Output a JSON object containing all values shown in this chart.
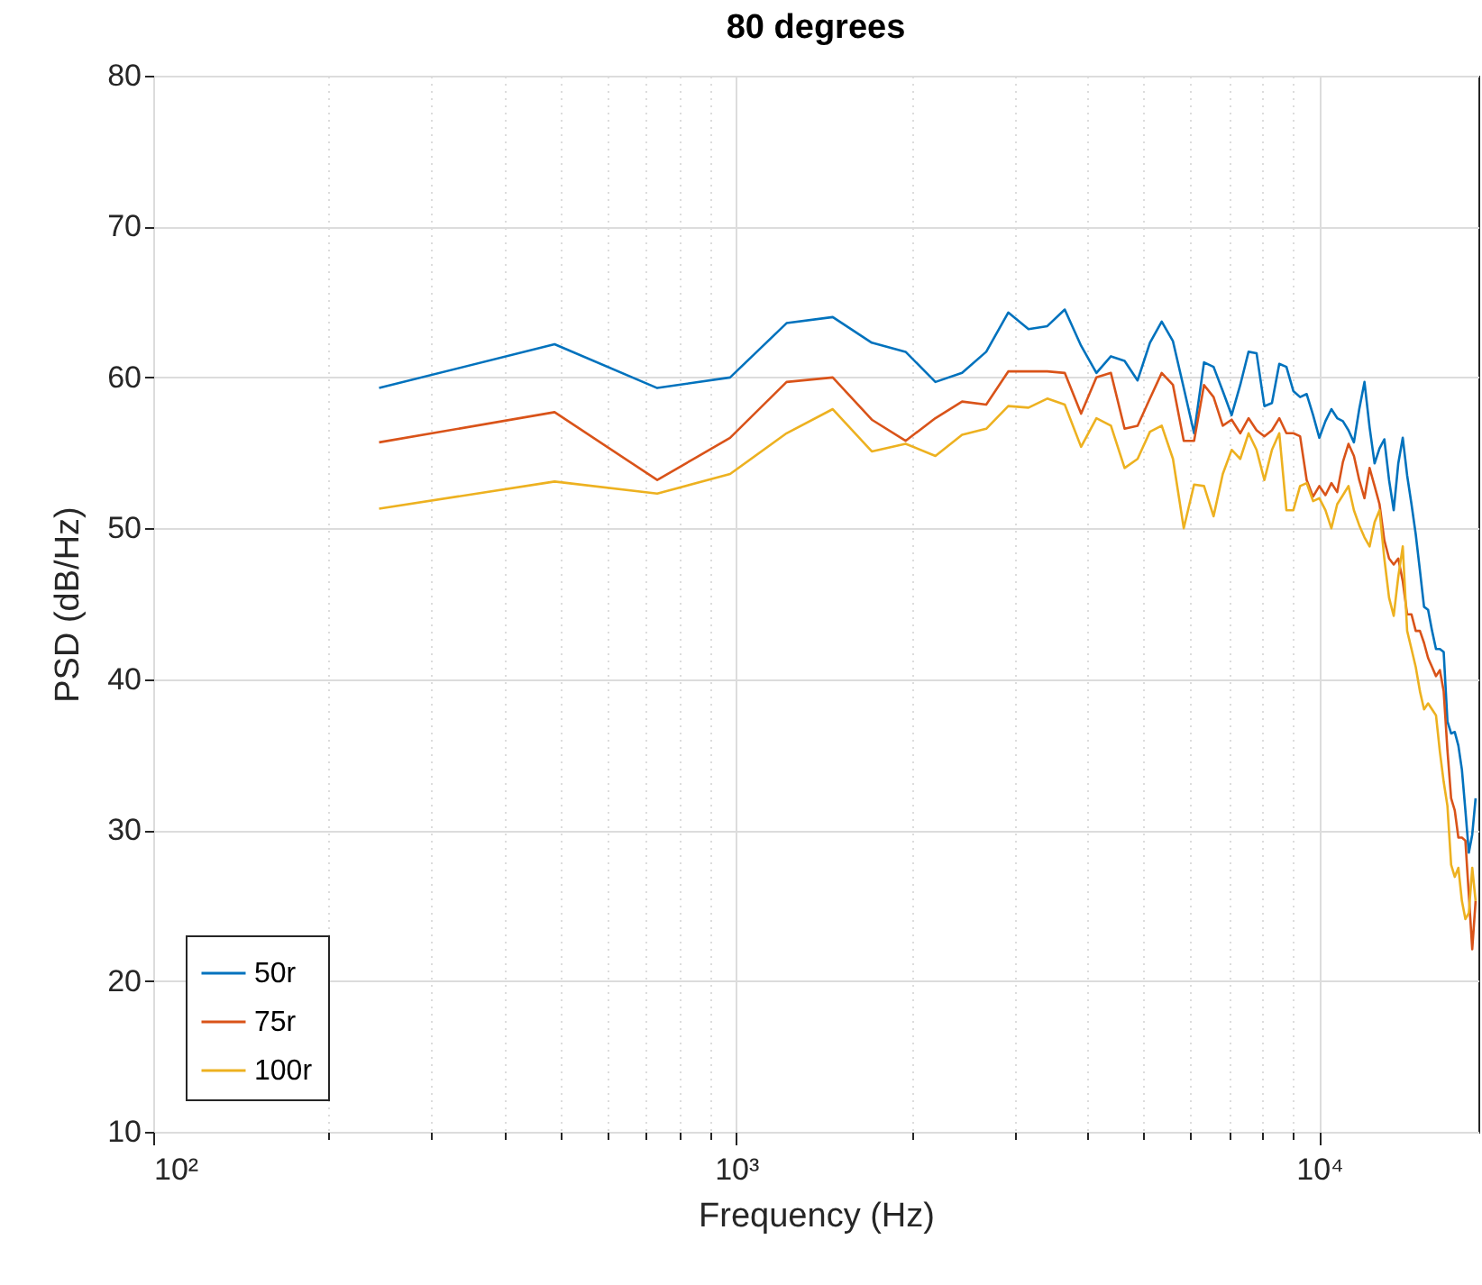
{
  "chart_data": {
    "type": "line",
    "title": "80 degrees",
    "xlabel": "Frequency (Hz)",
    "ylabel": "PSD (dB/Hz)",
    "log": "x",
    "grid": true,
    "legend": "bottom left",
    "line_style": "solid",
    "marker": "none",
    "xlim": [
      100,
      18750
    ],
    "ylim": [
      10,
      80
    ],
    "xticks": [
      {
        "value": 100,
        "label": "10²"
      },
      {
        "value": 200,
        "label": null
      },
      {
        "value": 300,
        "label": null
      },
      {
        "value": 400,
        "label": null
      },
      {
        "value": 500,
        "label": null
      },
      {
        "value": 600,
        "label": null
      },
      {
        "value": 700,
        "label": null
      },
      {
        "value": 800,
        "label": null
      },
      {
        "value": 900,
        "label": null
      },
      {
        "value": 1000,
        "label": "10³"
      },
      {
        "value": 2000,
        "label": null
      },
      {
        "value": 3000,
        "label": null
      },
      {
        "value": 4000,
        "label": null
      },
      {
        "value": 5000,
        "label": null
      },
      {
        "value": 6000,
        "label": null
      },
      {
        "value": 7000,
        "label": null
      },
      {
        "value": 8000,
        "label": null
      },
      {
        "value": 9000,
        "label": null
      },
      {
        "value": 10000,
        "label": "10⁴"
      }
    ],
    "yticks": [
      10,
      20,
      30,
      40,
      50,
      60,
      70,
      80
    ],
    "x": [
      244,
      488,
      732,
      976,
      1220,
      1464,
      1708,
      1952,
      2196,
      2440,
      2684,
      2928,
      3172,
      3416,
      3660,
      3904,
      4148,
      4392,
      4636,
      4880,
      5124,
      5368,
      5612,
      5856,
      6100,
      6344,
      6588,
      6832,
      7076,
      7320,
      7564,
      7808,
      8052,
      8296,
      8540,
      8784,
      9028,
      9272,
      9516,
      9760,
      10004,
      10248,
      10492,
      10736,
      10980,
      11224,
      11468,
      11712,
      11956,
      12200,
      12444,
      12688,
      12932,
      13176,
      13420,
      13664,
      13908,
      14152,
      14396,
      14640,
      14884,
      15128,
      15372,
      15616,
      15860,
      16104,
      16348,
      16592,
      16836,
      17080,
      17324,
      17568,
      17812,
      18056,
      18300,
      18544
    ],
    "series": [
      {
        "name": "50r",
        "color": "#0072bd",
        "values": [
          59.3,
          62.2,
          59.3,
          60.0,
          63.6,
          64.0,
          62.3,
          61.7,
          59.7,
          60.3,
          61.7,
          64.3,
          63.2,
          63.4,
          64.5,
          62.1,
          60.3,
          61.4,
          61.1,
          59.8,
          62.3,
          63.7,
          62.4,
          59.3,
          56.3,
          61.0,
          60.7,
          59.1,
          57.5,
          59.5,
          61.7,
          61.6,
          58.1,
          58.3,
          60.9,
          60.7,
          59.1,
          58.7,
          58.9,
          57.5,
          56.0,
          57.1,
          57.9,
          57.3,
          57.1,
          56.5,
          55.7,
          57.9,
          59.7,
          56.7,
          54.3,
          55.3,
          55.9,
          53.2,
          51.2,
          54.3,
          56.0,
          53.5,
          51.6,
          49.6,
          47.2,
          44.8,
          44.6,
          43.2,
          42.0,
          42.0,
          41.8,
          37.2,
          36.4,
          36.5,
          35.6,
          34.0,
          31.3,
          28.5,
          29.7,
          32.1
        ]
      },
      {
        "name": "75r",
        "color": "#d95319",
        "values": [
          55.7,
          57.7,
          53.2,
          56.0,
          59.7,
          60.0,
          57.2,
          55.8,
          57.3,
          58.4,
          58.2,
          60.4,
          60.4,
          60.4,
          60.3,
          57.6,
          60.0,
          60.3,
          56.6,
          56.8,
          58.6,
          60.3,
          59.5,
          55.8,
          55.8,
          59.5,
          58.7,
          56.8,
          57.2,
          56.3,
          57.3,
          56.5,
          56.1,
          56.5,
          57.3,
          56.3,
          56.3,
          56.1,
          53.2,
          52.1,
          52.8,
          52.2,
          53.0,
          52.4,
          54.4,
          55.6,
          54.8,
          53.2,
          52.0,
          54.0,
          52.8,
          51.6,
          49.2,
          48.0,
          47.6,
          48.0,
          46.5,
          44.3,
          44.3,
          43.2,
          43.2,
          42.4,
          41.4,
          40.8,
          40.2,
          40.6,
          39.2,
          35.3,
          32.1,
          31.3,
          29.5,
          29.5,
          29.3,
          25.7,
          22.1,
          25.3
        ]
      },
      {
        "name": "100r",
        "color": "#edb120",
        "values": [
          51.3,
          53.1,
          52.3,
          53.6,
          56.3,
          57.9,
          55.1,
          55.6,
          54.8,
          56.2,
          56.6,
          58.1,
          58.0,
          58.6,
          58.2,
          55.4,
          57.3,
          56.8,
          54.0,
          54.6,
          56.4,
          56.8,
          54.6,
          50.0,
          52.9,
          52.8,
          50.8,
          53.6,
          55.2,
          54.6,
          56.3,
          55.2,
          53.2,
          55.2,
          56.3,
          51.2,
          51.2,
          52.8,
          53.0,
          51.8,
          52.0,
          51.2,
          50.0,
          51.6,
          52.2,
          52.8,
          51.2,
          50.2,
          49.4,
          48.8,
          50.4,
          51.2,
          48.0,
          45.4,
          44.2,
          46.8,
          48.8,
          43.2,
          42.0,
          40.8,
          39.2,
          38.0,
          38.4,
          38.0,
          37.6,
          35.2,
          33.2,
          31.6,
          27.7,
          26.9,
          27.5,
          25.3,
          24.1,
          24.5,
          27.5,
          25.3
        ]
      }
    ]
  }
}
